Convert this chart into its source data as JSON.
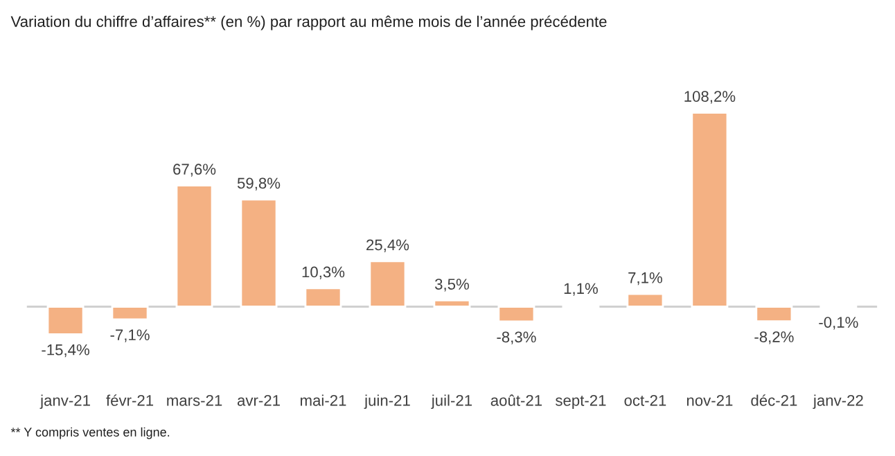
{
  "chart_data": {
    "type": "bar",
    "title": "Variation du chiffre d’affaires** (en %) par rapport au même mois de l’année précédente",
    "categories": [
      "janv-21",
      "févr-21",
      "mars-21",
      "avr-21",
      "mai-21",
      "juin-21",
      "juil-21",
      "août-21",
      "sept-21",
      "oct-21",
      "nov-21",
      "déc-21",
      "janv-22"
    ],
    "values": [
      -15.4,
      -7.1,
      67.6,
      59.8,
      10.3,
      25.4,
      3.5,
      -8.3,
      1.1,
      7.1,
      108.2,
      -8.2,
      -0.1
    ],
    "value_labels": [
      "-15,4%",
      "-7,1%",
      "67,6%",
      "59,8%",
      "10,3%",
      "25,4%",
      "3,5%",
      "-8,3%",
      "1,1%",
      "7,1%",
      "108,2%",
      "-8,2%",
      "-0,1%"
    ],
    "color": "#f4b183",
    "tick_labels": "x",
    "grid": false,
    "legend": false,
    "annotations": [
      "** Y compris ventes en ligne."
    ]
  }
}
